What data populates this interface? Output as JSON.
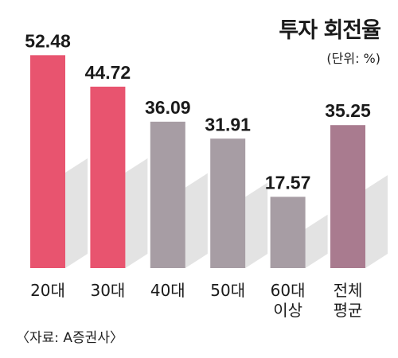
{
  "chart_data": {
    "type": "bar",
    "title": "투자 회전율",
    "unit": "(단위: %)",
    "source": "〈자료: A증권사〉",
    "categories": [
      [
        "20대"
      ],
      [
        "30대"
      ],
      [
        "40대"
      ],
      [
        "50대"
      ],
      [
        "60대",
        "이상"
      ],
      [
        "전체",
        "평균"
      ]
    ],
    "values": [
      52.48,
      44.72,
      36.09,
      31.91,
      17.57,
      35.25
    ],
    "value_labels": [
      "52.48",
      "44.72",
      "36.09",
      "31.91",
      "17.57",
      "35.25"
    ],
    "ylim": [
      0,
      60
    ],
    "colors": [
      "#e8546f",
      "#e8546f",
      "#a79da4",
      "#a79da4",
      "#a79da4",
      "#a97b8f"
    ],
    "shadow_color": "#e3e3e3",
    "grid": false,
    "legend": "none"
  }
}
